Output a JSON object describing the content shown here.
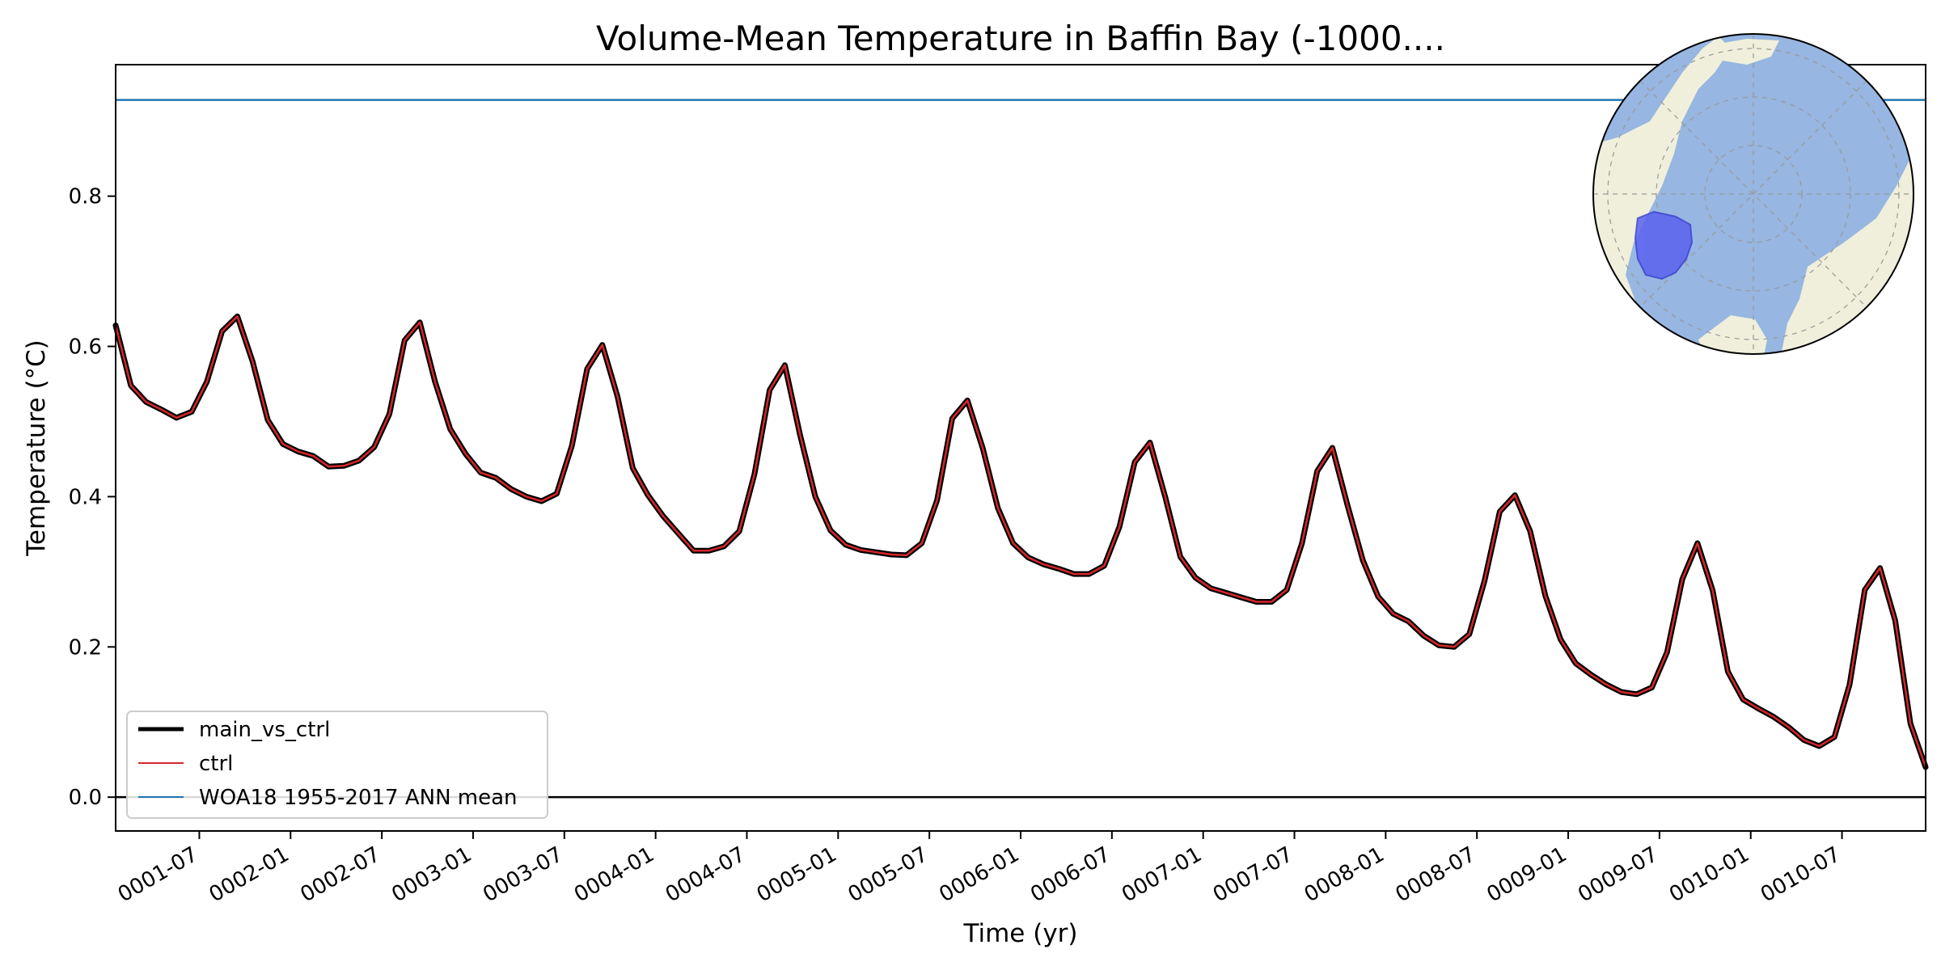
{
  "chart_data": {
    "type": "line",
    "title": "Volume-Mean Temperature in Baffin Bay (-1000....",
    "xlabel": "Time (yr)",
    "ylabel": "Temperature (°C)",
    "xlim": [
      0,
      119
    ],
    "ylim": [
      -0.045,
      0.975
    ],
    "yticks": [
      0.0,
      0.2,
      0.4,
      0.6,
      0.8
    ],
    "ytick_labels": [
      "0.0",
      "0.2",
      "0.4",
      "0.6",
      "0.8"
    ],
    "xticks": [
      {
        "label": "0001-07",
        "value": 5.5
      },
      {
        "label": "0002-01",
        "value": 11.5
      },
      {
        "label": "0002-07",
        "value": 17.5
      },
      {
        "label": "0003-01",
        "value": 23.5
      },
      {
        "label": "0003-07",
        "value": 29.5
      },
      {
        "label": "0004-01",
        "value": 35.5
      },
      {
        "label": "0004-07",
        "value": 41.5
      },
      {
        "label": "0005-01",
        "value": 47.5
      },
      {
        "label": "0005-07",
        "value": 53.5
      },
      {
        "label": "0006-01",
        "value": 59.5
      },
      {
        "label": "0006-07",
        "value": 65.5
      },
      {
        "label": "0007-01",
        "value": 71.5
      },
      {
        "label": "0007-07",
        "value": 77.5
      },
      {
        "label": "0008-01",
        "value": 83.5
      },
      {
        "label": "0008-07",
        "value": 89.5
      },
      {
        "label": "0009-01",
        "value": 95.5
      },
      {
        "label": "0009-07",
        "value": 101.5
      },
      {
        "label": "0010-01",
        "value": 107.5
      },
      {
        "label": "0010-07",
        "value": 113.5
      }
    ],
    "zero_line": 0.0,
    "reference_line": {
      "name": "WOA18 1955-2017 ANN mean",
      "value": 0.928,
      "color": "#1f77b4"
    },
    "series": [
      {
        "name": "main_vs_ctrl",
        "color": "#000000",
        "values": [
          0.628,
          0.548,
          0.526,
          0.516,
          0.505,
          0.513,
          0.553,
          0.62,
          0.64,
          0.58,
          0.502,
          0.47,
          0.46,
          0.454,
          0.44,
          0.441,
          0.448,
          0.466,
          0.51,
          0.608,
          0.632,
          0.553,
          0.49,
          0.457,
          0.432,
          0.425,
          0.41,
          0.4,
          0.394,
          0.404,
          0.468,
          0.57,
          0.602,
          0.533,
          0.438,
          0.402,
          0.374,
          0.351,
          0.328,
          0.328,
          0.334,
          0.354,
          0.43,
          0.542,
          0.575,
          0.482,
          0.4,
          0.355,
          0.336,
          0.329,
          0.326,
          0.323,
          0.322,
          0.338,
          0.395,
          0.504,
          0.528,
          0.465,
          0.385,
          0.338,
          0.319,
          0.31,
          0.304,
          0.297,
          0.297,
          0.308,
          0.36,
          0.446,
          0.472,
          0.4,
          0.32,
          0.292,
          0.278,
          0.272,
          0.266,
          0.26,
          0.26,
          0.276,
          0.338,
          0.434,
          0.465,
          0.388,
          0.315,
          0.267,
          0.244,
          0.234,
          0.215,
          0.202,
          0.2,
          0.217,
          0.288,
          0.38,
          0.402,
          0.354,
          0.268,
          0.21,
          0.178,
          0.163,
          0.15,
          0.14,
          0.137,
          0.146,
          0.193,
          0.29,
          0.338,
          0.275,
          0.167,
          0.13,
          0.118,
          0.107,
          0.093,
          0.076,
          0.068,
          0.08,
          0.15,
          0.276,
          0.305,
          0.235,
          0.098,
          0.04
        ]
      },
      {
        "name": "ctrl",
        "color": "#d62728",
        "values": [
          0.628,
          0.548,
          0.526,
          0.516,
          0.505,
          0.513,
          0.553,
          0.62,
          0.64,
          0.58,
          0.502,
          0.47,
          0.46,
          0.454,
          0.44,
          0.441,
          0.448,
          0.466,
          0.51,
          0.608,
          0.632,
          0.553,
          0.49,
          0.457,
          0.432,
          0.425,
          0.41,
          0.4,
          0.394,
          0.404,
          0.468,
          0.57,
          0.602,
          0.533,
          0.438,
          0.402,
          0.374,
          0.351,
          0.328,
          0.328,
          0.334,
          0.354,
          0.43,
          0.542,
          0.575,
          0.482,
          0.4,
          0.355,
          0.336,
          0.329,
          0.326,
          0.323,
          0.322,
          0.338,
          0.395,
          0.504,
          0.528,
          0.465,
          0.385,
          0.338,
          0.319,
          0.31,
          0.304,
          0.297,
          0.297,
          0.308,
          0.36,
          0.446,
          0.472,
          0.4,
          0.32,
          0.292,
          0.278,
          0.272,
          0.266,
          0.26,
          0.26,
          0.276,
          0.338,
          0.434,
          0.465,
          0.388,
          0.315,
          0.267,
          0.244,
          0.234,
          0.215,
          0.202,
          0.2,
          0.217,
          0.288,
          0.38,
          0.402,
          0.354,
          0.268,
          0.21,
          0.178,
          0.163,
          0.15,
          0.14,
          0.137,
          0.146,
          0.193,
          0.29,
          0.338,
          0.275,
          0.167,
          0.13,
          0.118,
          0.107,
          0.093,
          0.076,
          0.068,
          0.08,
          0.15,
          0.276,
          0.305,
          0.235,
          0.098,
          0.04
        ]
      }
    ],
    "legend": {
      "location": "lower-left",
      "entries": [
        "main_vs_ctrl",
        "ctrl",
        "WOA18 1955-2017 ANN mean"
      ]
    },
    "inset_map": {
      "projection": "north-polar-stereographic",
      "location": "top-right",
      "ocean_color": "#97b6e1",
      "land_color": "#efefdb",
      "region_color": "#5b62f0",
      "region": "Baffin Bay"
    }
  }
}
